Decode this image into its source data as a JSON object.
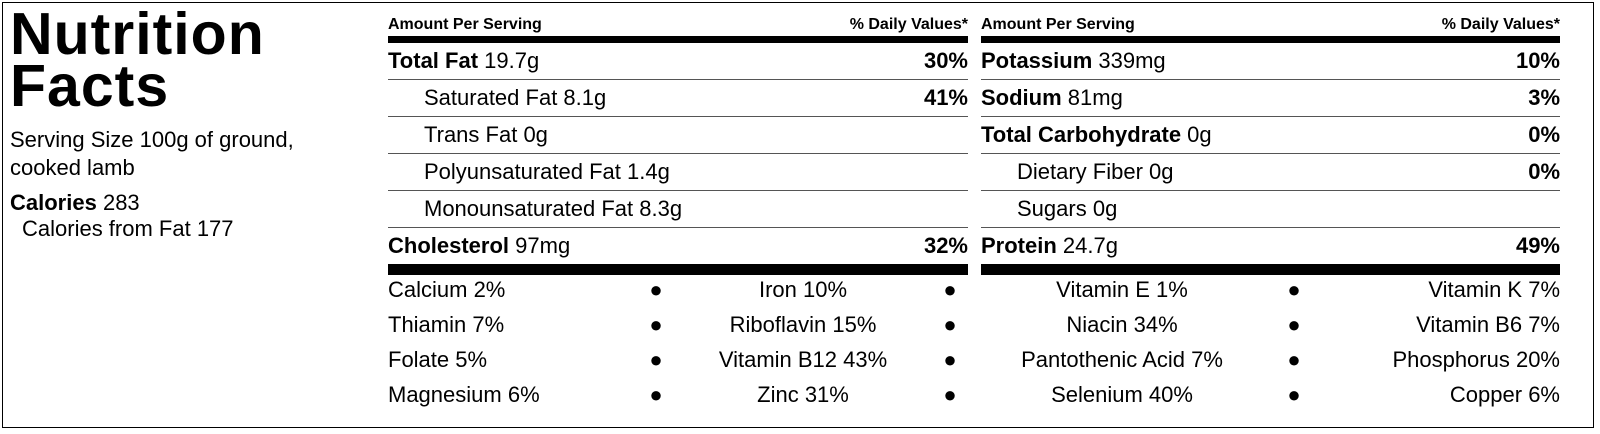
{
  "title_line1": "Nutrition",
  "title_line2": "Facts",
  "serving_size": "Serving Size 100g of ground, cooked lamb",
  "calories_label": "Calories",
  "calories_value": "283",
  "calories_from_fat": "Calories from Fat 177",
  "panels": [
    {
      "header_left": "Amount Per Serving",
      "header_right": "% Daily Values*",
      "rows": [
        {
          "name": "Total Fat",
          "amount": "19.7g",
          "pct": "30%",
          "bold": true
        },
        {
          "name": "Saturated Fat",
          "amount": "8.1g",
          "pct": "41%",
          "bold": false
        },
        {
          "name": "Trans Fat",
          "amount": "0g",
          "pct": "",
          "bold": false
        },
        {
          "name": "Polyunsaturated Fat",
          "amount": "1.4g",
          "pct": "",
          "bold": false
        },
        {
          "name": "Monounsaturated Fat",
          "amount": "8.3g",
          "pct": "",
          "bold": false
        },
        {
          "name": "Cholesterol",
          "amount": "97mg",
          "pct": "32%",
          "bold": true
        }
      ]
    },
    {
      "header_left": "Amount Per Serving",
      "header_right": "% Daily Values*",
      "rows": [
        {
          "name": "Potassium",
          "amount": "339mg",
          "pct": "10%",
          "bold": true
        },
        {
          "name": "Sodium",
          "amount": "81mg",
          "pct": "3%",
          "bold": true
        },
        {
          "name": "Total Carbohydrate",
          "amount": "0g",
          "pct": "0%",
          "bold": true
        },
        {
          "name": "Dietary Fiber",
          "amount": "0g",
          "pct": "0%",
          "bold": false
        },
        {
          "name": "Sugars",
          "amount": "0g",
          "pct": "",
          "bold": false
        },
        {
          "name": "Protein",
          "amount": "24.7g",
          "pct": "49%",
          "bold": true
        }
      ]
    }
  ],
  "vitamins": [
    [
      "Calcium 2%",
      "Iron 10%",
      "Vitamin E 1%",
      "Vitamin K 7%"
    ],
    [
      "Thiamin 7%",
      "Riboflavin 15%",
      "Niacin 34%",
      "Vitamin B6 7%"
    ],
    [
      "Folate 5%",
      "Vitamin B12 43%",
      "Pantothenic Acid 7%",
      "Phosphorus 20%"
    ],
    [
      "Magnesium 6%",
      "Zinc 31%",
      "Selenium 40%",
      "Copper 6%"
    ]
  ],
  "separator": "●"
}
